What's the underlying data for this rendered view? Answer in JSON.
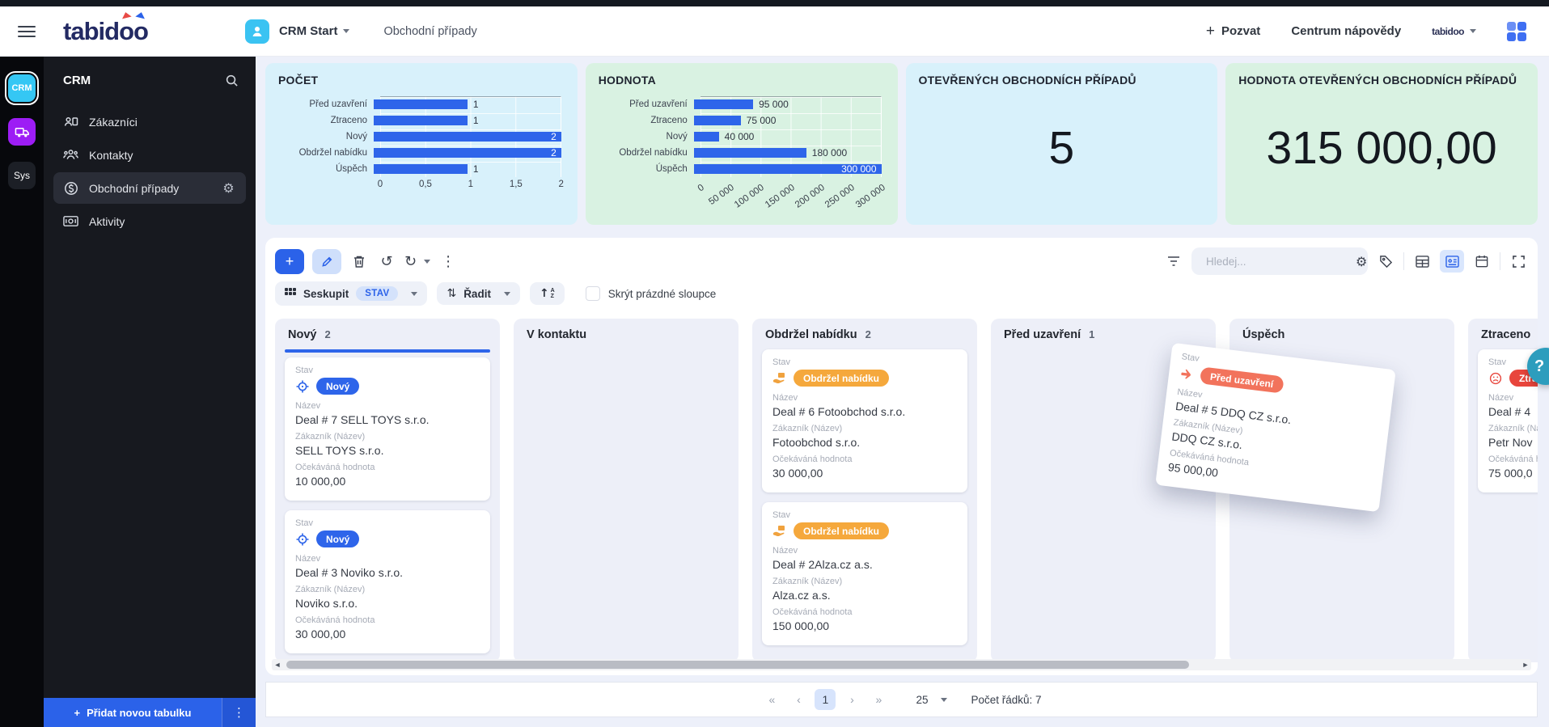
{
  "header": {
    "logo": "tabidoo",
    "workspace": "CRM Start",
    "breadcrumb": "Obchodní případy",
    "invite_label": "Pozvat",
    "help_center": "Centrum nápovědy",
    "account_label": "tabidoo"
  },
  "rail": {
    "crm": "CRM",
    "sys": "Sys"
  },
  "sidebar": {
    "title": "CRM",
    "items": [
      {
        "label": "Zákazníci",
        "icon": "customer-icon",
        "active": false
      },
      {
        "label": "Kontakty",
        "icon": "contacts-icon",
        "active": false
      },
      {
        "label": "Obchodní případy",
        "icon": "deals-icon",
        "active": true
      },
      {
        "label": "Aktivity",
        "icon": "activities-icon",
        "active": false
      }
    ],
    "add_table_label": "Přidat novou tabulku"
  },
  "dashboard": {
    "cards": [
      {
        "type": "chart",
        "title": "POČET"
      },
      {
        "type": "chart",
        "title": "HODNOTA"
      },
      {
        "type": "kpi",
        "title": "OTEVŘENÝCH OBCHODNÍCH PŘÍPADŮ",
        "value": "5"
      },
      {
        "type": "kpi",
        "title": "HODNOTA OTEVŘENÝCH OBCHODNÍCH PŘÍPADŮ",
        "value": "315 000,00"
      }
    ]
  },
  "chart_data": [
    {
      "type": "bar",
      "orientation": "horizontal",
      "title": "POČET",
      "categories": [
        "Před uzavření",
        "Ztraceno",
        "Nový",
        "Obdržel nabídku",
        "Úspěch"
      ],
      "values": [
        1,
        1,
        2,
        2,
        1
      ],
      "value_labels": [
        "1",
        "1",
        "2",
        "2",
        "1"
      ],
      "xlim": [
        0,
        2
      ],
      "ticks": [
        "0",
        "0,5",
        "1",
        "1,5",
        "2"
      ],
      "rotated_ticks": false,
      "bar_color": "#2e65ea",
      "grid": true
    },
    {
      "type": "bar",
      "orientation": "horizontal",
      "title": "HODNOTA",
      "categories": [
        "Před uzavření",
        "Ztraceno",
        "Nový",
        "Obdržel nabídku",
        "Úspěch"
      ],
      "values": [
        95000,
        75000,
        40000,
        180000,
        300000
      ],
      "value_labels": [
        "95 000",
        "75 000",
        "40 000",
        "180 000",
        "300 000"
      ],
      "xlim": [
        0,
        300000
      ],
      "ticks": [
        "0",
        "50 000",
        "100 000",
        "150 000",
        "200 000",
        "250 000",
        "300 000"
      ],
      "rotated_ticks": true,
      "bar_color": "#2e65ea",
      "grid": true
    }
  ],
  "toolbar": {
    "search_placeholder": "Hledej...",
    "group_label": "Seskupit",
    "group_value": "STAV",
    "sort_label": "Řadit",
    "hide_empty_label": "Skrýt prázdné sloupce"
  },
  "board": {
    "field_labels": {
      "status": "Stav",
      "name": "Název",
      "customer": "Zákazník (Název)",
      "value": "Očekáváná hodnota"
    },
    "status_colors": {
      "Nový": "#2e65ea",
      "Obdržel nabídku": "#f5a83c",
      "Před uzavření": "#f2735c",
      "Ztraceno": "#e8453c"
    },
    "columns": [
      {
        "name": "Nový",
        "count": "2",
        "cards": [
          {
            "status": "Nový",
            "icon": "target-icon",
            "drop_indicator": true,
            "name": "Deal # 7 SELL TOYS s.r.o.",
            "customer": "SELL TOYS s.r.o.",
            "value": "10 000,00"
          },
          {
            "status": "Nový",
            "icon": "target-icon",
            "name": "Deal # 3 Noviko s.r.o.",
            "customer": "Noviko s.r.o.",
            "value": "30 000,00"
          }
        ]
      },
      {
        "name": "V kontaktu",
        "count": "",
        "cards": []
      },
      {
        "name": "Obdržel nabídku",
        "count": "2",
        "cards": [
          {
            "status": "Obdržel nabídku",
            "icon": "offer-icon",
            "name": "Deal # 6 Fotoobchod s.r.o.",
            "customer": "Fotoobchod s.r.o.",
            "value": "30 000,00"
          },
          {
            "status": "Obdržel nabídku",
            "icon": "offer-icon",
            "name": "Deal # 2Alza.cz a.s.",
            "customer": "Alza.cz a.s.",
            "value": "150 000,00"
          }
        ]
      },
      {
        "name": "Před uzavření",
        "count": "1",
        "cards": []
      },
      {
        "name": "Úspěch",
        "count": "",
        "cards": []
      },
      {
        "name": "Ztraceno",
        "count": "",
        "cards": [
          {
            "status": "Ztraceno",
            "icon": "sad-face-icon",
            "name": "Deal # 4",
            "customer": "Petr Nov",
            "value": "75 000,0"
          }
        ]
      }
    ],
    "dragged_card": {
      "status": "Před uzavření",
      "icon": "hand-icon",
      "name": "Deal # 5 DDQ CZ s.r.o.",
      "customer": "DDQ CZ s.r.o.",
      "value": "95 000,00"
    }
  },
  "pagination": {
    "first": "«",
    "prev": "‹",
    "page": "1",
    "next": "›",
    "last": "»",
    "page_size": "25",
    "rows_label": "Počet řádků: 7"
  },
  "help_button": "?"
}
